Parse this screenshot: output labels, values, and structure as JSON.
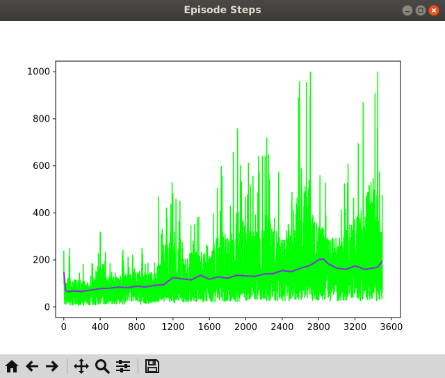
{
  "window": {
    "title": "Episode Steps"
  },
  "toolbar": {
    "buttons": [
      {
        "name": "home",
        "icon": "home-icon"
      },
      {
        "name": "back",
        "icon": "arrow-left-icon"
      },
      {
        "name": "forward",
        "icon": "arrow-right-icon"
      },
      {
        "name": "pan",
        "icon": "move-icon"
      },
      {
        "name": "zoom",
        "icon": "magnifier-icon"
      },
      {
        "name": "configure",
        "icon": "sliders-icon"
      },
      {
        "name": "save",
        "icon": "floppy-disk-icon"
      }
    ]
  },
  "colors": {
    "raw_series": "#00ff00",
    "smoothed_series": "#8b2be2",
    "title_bar": "#3b3a36",
    "toolbar": "#d6d6d6"
  },
  "chart_data": {
    "type": "line",
    "title": "",
    "xlabel": "",
    "ylabel": "",
    "xlim": [
      -90,
      3700
    ],
    "ylim": [
      -45,
      1045
    ],
    "xticks": [
      0,
      400,
      800,
      1200,
      1600,
      2000,
      2400,
      2800,
      3200,
      3600
    ],
    "yticks": [
      0,
      200,
      400,
      600,
      800,
      1000
    ],
    "grid": false,
    "legend": "none",
    "series": [
      {
        "style": "raw",
        "note_envelope": true,
        "x": [
          0,
          100,
          200,
          300,
          400,
          500,
          600,
          700,
          800,
          900,
          1000,
          1100,
          1200,
          1300,
          1400,
          1500,
          1600,
          1700,
          1800,
          1900,
          2000,
          2100,
          2200,
          2300,
          2400,
          2500,
          2600,
          2700,
          2800,
          2900,
          3000,
          3100,
          3200,
          3300,
          3400,
          3500
        ],
        "low": [
          5,
          5,
          5,
          5,
          10,
          10,
          10,
          10,
          10,
          10,
          15,
          15,
          15,
          20,
          20,
          20,
          20,
          20,
          20,
          20,
          25,
          25,
          25,
          25,
          25,
          25,
          25,
          25,
          25,
          25,
          25,
          25,
          25,
          25,
          25,
          25
        ],
        "high": [
          250,
          220,
          215,
          200,
          320,
          240,
          240,
          260,
          290,
          270,
          290,
          470,
          530,
          470,
          420,
          450,
          400,
          600,
          560,
          760,
          620,
          600,
          720,
          690,
          530,
          700,
          960,
          1000,
          640,
          580,
          520,
          600,
          700,
          870,
          1000,
          560
        ],
        "peaks": [
          [
            64,
            250
          ],
          [
            400,
            320
          ],
          [
            1040,
            470
          ],
          [
            1190,
            530
          ],
          [
            1730,
            600
          ],
          [
            1910,
            760
          ],
          [
            2230,
            720
          ],
          [
            2590,
            960
          ],
          [
            2710,
            1000
          ],
          [
            3290,
            870
          ],
          [
            3450,
            1000
          ]
        ]
      },
      {
        "style": "smoothed",
        "x": [
          0,
          20,
          50,
          100,
          200,
          300,
          400,
          500,
          600,
          700,
          800,
          900,
          1000,
          1100,
          1200,
          1300,
          1400,
          1500,
          1600,
          1700,
          1800,
          1900,
          2000,
          2100,
          2200,
          2300,
          2400,
          2500,
          2600,
          2700,
          2800,
          2850,
          2900,
          3000,
          3100,
          3200,
          3300,
          3400,
          3450,
          3500
        ],
        "y": [
          150,
          70,
          65,
          68,
          66,
          72,
          78,
          80,
          84,
          82,
          88,
          85,
          92,
          95,
          125,
          120,
          115,
          135,
          118,
          128,
          122,
          135,
          132,
          130,
          140,
          142,
          155,
          150,
          165,
          175,
          200,
          205,
          185,
          165,
          160,
          175,
          160,
          165,
          170,
          195
        ]
      }
    ]
  }
}
